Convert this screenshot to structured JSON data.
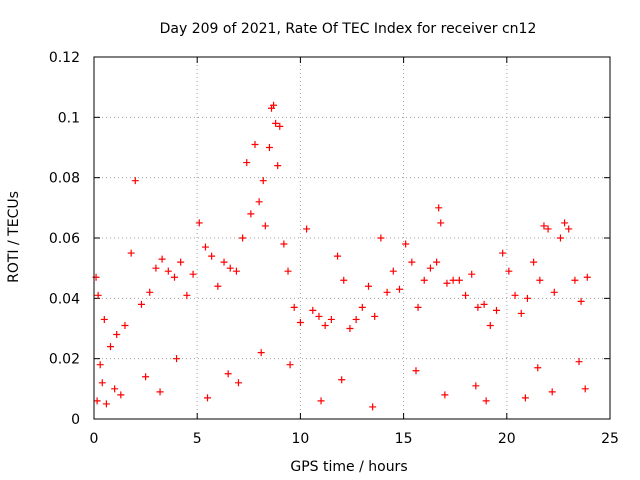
{
  "chart_data": {
    "type": "scatter",
    "title": "Day 209 of 2021, Rate Of TEC Index for receiver cn12",
    "xlabel": "GPS time / hours",
    "ylabel": "ROTI / TECUs",
    "xlim": [
      0,
      25
    ],
    "ylim": [
      0,
      0.12
    ],
    "xticks": [
      0,
      5,
      10,
      15,
      20,
      25
    ],
    "xtick_labels": [
      "0",
      "5",
      "10",
      "15",
      "20",
      "25"
    ],
    "yticks": [
      0,
      0.02,
      0.04,
      0.06,
      0.08,
      0.1,
      0.12
    ],
    "ytick_labels": [
      "0",
      "0.02",
      "0.04",
      "0.06",
      "0.08",
      "0.1",
      "0.12"
    ],
    "grid": true,
    "marker": "plus",
    "marker_color": "#ff0000",
    "series": [
      {
        "name": "ROTI",
        "x": [
          0.1,
          0.2,
          0.3,
          0.5,
          0.8,
          1.1,
          1.5,
          1.8,
          2.0,
          2.3,
          2.7,
          3.0,
          3.3,
          3.6,
          3.9,
          4.2,
          4.5,
          4.8,
          5.1,
          5.4,
          5.7,
          6.0,
          6.3,
          6.6,
          6.9,
          7.2,
          7.4,
          7.6,
          7.8,
          8.0,
          8.2,
          8.3,
          8.5,
          8.6,
          8.7,
          8.8,
          8.9,
          9.0,
          9.2,
          9.4,
          9.7,
          10.0,
          10.3,
          10.6,
          10.9,
          11.2,
          11.5,
          11.8,
          12.1,
          12.4,
          12.7,
          13.0,
          13.3,
          13.6,
          13.9,
          14.2,
          14.5,
          14.8,
          15.1,
          15.4,
          15.7,
          16.0,
          16.3,
          16.6,
          16.7,
          16.8,
          17.1,
          17.4,
          17.7,
          18.0,
          18.3,
          18.6,
          18.9,
          19.2,
          19.5,
          19.8,
          20.1,
          20.4,
          20.7,
          21.0,
          21.3,
          21.6,
          21.8,
          22.0,
          22.3,
          22.6,
          22.8,
          23.0,
          23.3,
          23.6,
          23.9,
          0.4,
          1.0,
          2.5,
          4.0,
          6.5,
          9.5,
          12.0,
          15.6,
          18.5,
          21.5,
          23.5,
          0.15,
          0.6,
          1.3,
          3.2,
          5.5,
          7.0,
          8.1,
          11.0,
          13.5,
          17.0,
          19.0,
          20.9,
          22.2,
          23.8
        ],
        "y": [
          0.047,
          0.041,
          0.018,
          0.033,
          0.024,
          0.028,
          0.031,
          0.055,
          0.079,
          0.038,
          0.042,
          0.05,
          0.053,
          0.049,
          0.047,
          0.052,
          0.041,
          0.048,
          0.065,
          0.057,
          0.054,
          0.044,
          0.052,
          0.05,
          0.049,
          0.06,
          0.085,
          0.068,
          0.091,
          0.072,
          0.079,
          0.064,
          0.09,
          0.103,
          0.104,
          0.098,
          0.084,
          0.097,
          0.058,
          0.049,
          0.037,
          0.032,
          0.063,
          0.036,
          0.034,
          0.031,
          0.033,
          0.054,
          0.046,
          0.03,
          0.033,
          0.037,
          0.044,
          0.034,
          0.06,
          0.042,
          0.049,
          0.043,
          0.058,
          0.052,
          0.037,
          0.046,
          0.05,
          0.052,
          0.07,
          0.065,
          0.045,
          0.046,
          0.046,
          0.041,
          0.048,
          0.037,
          0.038,
          0.031,
          0.036,
          0.055,
          0.049,
          0.041,
          0.035,
          0.04,
          0.052,
          0.046,
          0.064,
          0.063,
          0.042,
          0.06,
          0.065,
          0.063,
          0.046,
          0.039,
          0.047,
          0.012,
          0.01,
          0.014,
          0.02,
          0.015,
          0.018,
          0.013,
          0.016,
          0.011,
          0.017,
          0.019,
          0.006,
          0.005,
          0.008,
          0.009,
          0.007,
          0.012,
          0.022,
          0.006,
          0.004,
          0.008,
          0.006,
          0.007,
          0.009,
          0.01
        ]
      }
    ]
  }
}
